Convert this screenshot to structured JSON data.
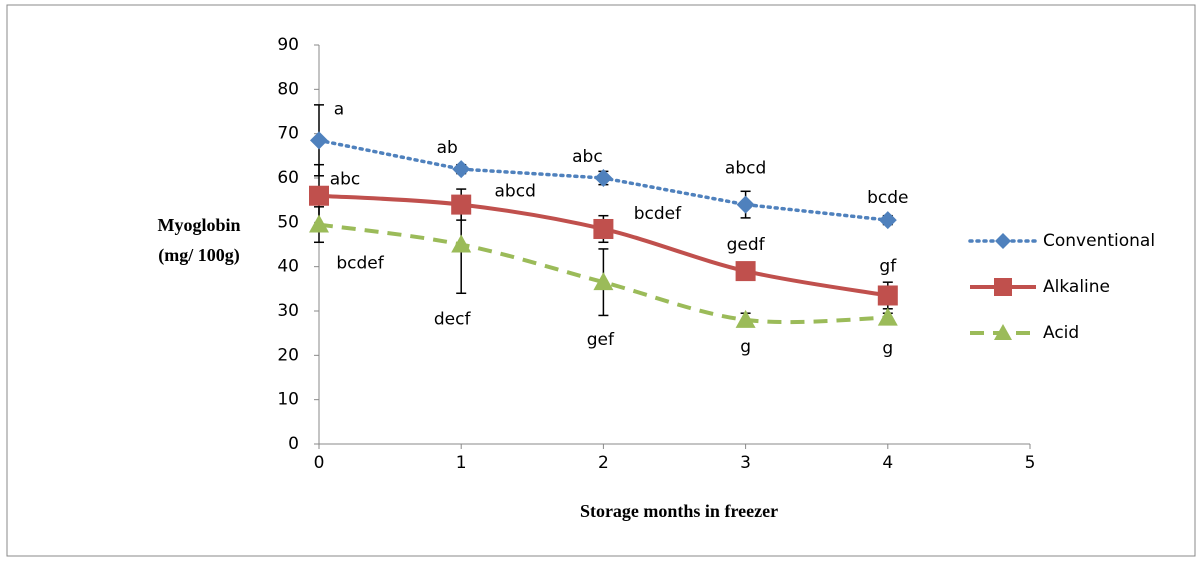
{
  "chart_data": {
    "type": "line",
    "y_label_lines": [
      "Myoglobin",
      "(mg/ 100g)"
    ],
    "x_label": "Storage months in freezer",
    "x": [
      0,
      1,
      2,
      3,
      4
    ],
    "xlim": [
      0,
      5
    ],
    "xticks": [
      0,
      1,
      2,
      3,
      4,
      5
    ],
    "ylim": [
      0,
      90
    ],
    "yticks": [
      0,
      10,
      20,
      30,
      40,
      50,
      60,
      70,
      80,
      90
    ],
    "grid": false,
    "legend": "right",
    "series": [
      {
        "name": "Conventional",
        "color": "#4f81bd",
        "line": "dotted",
        "marker": "diamond",
        "smooth": false,
        "values": [
          68.5,
          62,
          60,
          54,
          50.5
        ],
        "errors": [
          8,
          1,
          1.5,
          3,
          1
        ],
        "annotations": [
          "a",
          "ab",
          "abc",
          "abcd",
          "bcde"
        ]
      },
      {
        "name": "Alkaline",
        "color": "#c0504d",
        "line": "solid",
        "marker": "square",
        "smooth": true,
        "values": [
          56,
          54,
          48.5,
          39,
          33.5
        ],
        "errors": [
          7,
          3.5,
          3,
          1,
          3
        ],
        "annotations": [
          "abc",
          "abcd",
          "bcdef",
          "gedf",
          "gf"
        ]
      },
      {
        "name": "Acid",
        "color": "#9bbb59",
        "line": "dashed",
        "marker": "triangle",
        "smooth": true,
        "values": [
          49.5,
          45,
          36.5,
          28,
          28.5
        ],
        "errors": [
          4,
          11,
          7.5,
          1.5,
          1
        ],
        "annotations": [
          "bcdef",
          "decf",
          "gef",
          "g",
          "g"
        ]
      }
    ]
  }
}
